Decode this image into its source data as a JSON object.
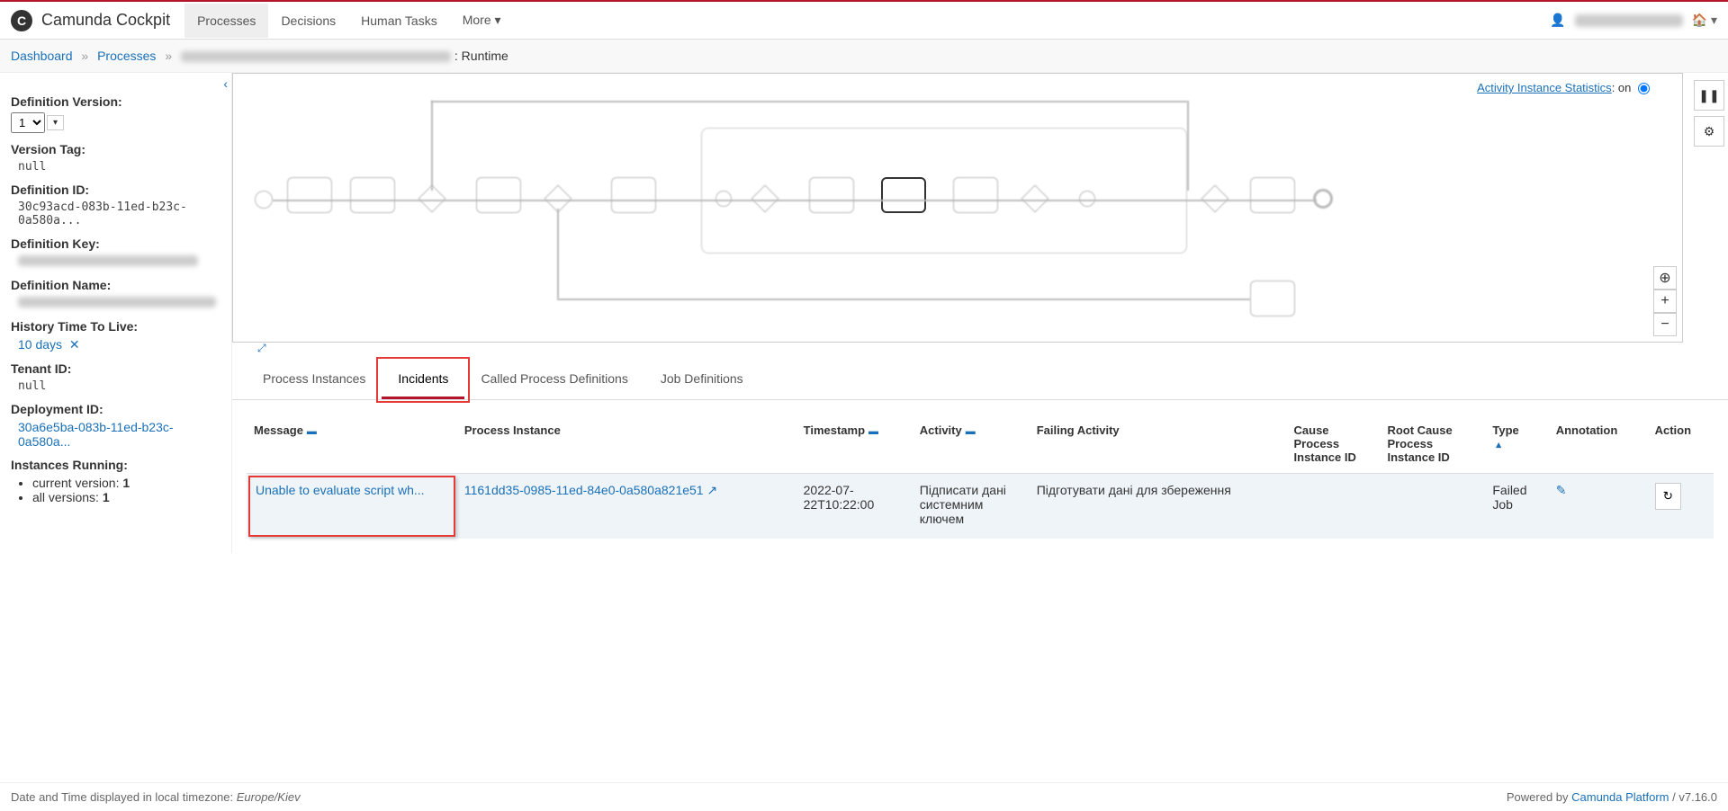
{
  "header": {
    "brand": "Camunda Cockpit",
    "nav": [
      "Processes",
      "Decisions",
      "Human Tasks",
      "More"
    ]
  },
  "breadcrumb": {
    "dashboard": "Dashboard",
    "processes": "Processes",
    "suffix": ": Runtime"
  },
  "sidebar": {
    "definitionVersion": {
      "label": "Definition Version:",
      "value": "1"
    },
    "versionTag": {
      "label": "Version Tag:",
      "value": "null"
    },
    "definitionId": {
      "label": "Definition ID:",
      "value": "30c93acd-083b-11ed-b23c-0a580a..."
    },
    "definitionKey": {
      "label": "Definition Key:"
    },
    "definitionName": {
      "label": "Definition Name:"
    },
    "historyTtl": {
      "label": "History Time To Live:",
      "value": "10 days"
    },
    "tenantId": {
      "label": "Tenant ID:",
      "value": "null"
    },
    "deploymentId": {
      "label": "Deployment ID:",
      "value": "30a6e5ba-083b-11ed-b23c-0a580a..."
    },
    "instancesRunning": {
      "label": "Instances Running:",
      "current": "current version:",
      "currentVal": "1",
      "all": "all versions:",
      "allVal": "1"
    }
  },
  "diagram": {
    "statsLabel": "Activity Instance Statistics",
    "statsState": ": on"
  },
  "tabs": [
    "Process Instances",
    "Incidents",
    "Called Process Definitions",
    "Job Definitions"
  ],
  "table": {
    "headers": {
      "message": "Message",
      "processInstance": "Process Instance",
      "timestamp": "Timestamp",
      "activity": "Activity",
      "failingActivity": "Failing Activity",
      "causeId": "Cause Process Instance ID",
      "rootCauseId": "Root Cause Process Instance ID",
      "type": "Type",
      "annotation": "Annotation",
      "action": "Action"
    },
    "row": {
      "message": "Unable to evaluate script wh...",
      "processInstance": "1161dd35-0985-11ed-84e0-0a580a821e51",
      "timestamp": "2022-07-22T10:22:00",
      "activity": "Підписати дані системним ключем",
      "failingActivity": "Підготувати дані для збереження",
      "type": "Failed Job"
    }
  },
  "footer": {
    "tz": "Date and Time displayed in local timezone: ",
    "tzVal": "Europe/Kiev",
    "powered": "Powered by ",
    "platform": "Camunda Platform",
    "version": " / v7.16.0"
  }
}
